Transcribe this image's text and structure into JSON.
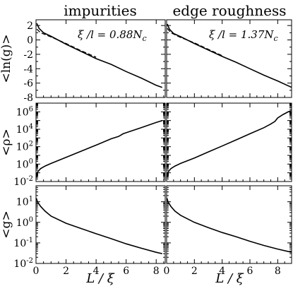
{
  "chart_data": {
    "type": "line",
    "columns": [
      {
        "title": "impurities",
        "annotation_prefix": "ξ /l = ",
        "annotation_value": "0.88N",
        "annotation_sub": "c",
        "xlim": [
          0,
          8.6
        ]
      },
      {
        "title": "edge roughness",
        "annotation_prefix": "ξ /l = ",
        "annotation_value": "1.37N",
        "annotation_sub": "c",
        "xlim": [
          0,
          9
        ]
      }
    ],
    "xlabel": "L / ξ",
    "xticks": [
      0,
      2,
      4,
      6,
      8
    ],
    "rows": [
      {
        "ylabel": "<ln(g)>",
        "scale": "linear",
        "ylim": [
          -8,
          2.8
        ],
        "yticks": [
          2,
          0,
          -2,
          -4,
          -6,
          -8
        ]
      },
      {
        "ylabel": "<ρ>",
        "scale": "log",
        "ylim": [
          0.01,
          10000000
        ],
        "yticks": [
          {
            "base": "10",
            "exp": "6",
            "value": 1000000
          },
          {
            "base": "10",
            "exp": "4",
            "value": 10000
          },
          {
            "base": "10",
            "exp": "2",
            "value": 100
          },
          {
            "base": "10",
            "exp": "0",
            "value": 1
          },
          {
            "base": "10",
            "exp": "-2",
            "value": 0.01
          }
        ]
      },
      {
        "ylabel": "<g>",
        "scale": "log",
        "ylim": [
          0.01,
          60
        ],
        "yticks": [
          {
            "base": "10",
            "exp": "1",
            "value": 10
          },
          {
            "base": "10",
            "exp": "0",
            "value": 1
          },
          {
            "base": "10",
            "exp": "-1",
            "value": 0.1
          },
          {
            "base": "10",
            "exp": "-2",
            "value": 0.01
          }
        ]
      }
    ],
    "panels": [
      {
        "row": 0,
        "col": 0,
        "series": [
          {
            "style": "solid",
            "x": [
              0.05,
              0.2,
              0.5,
              1,
              2,
              3,
              4,
              5,
              6,
              7,
              8,
              8.4
            ],
            "y": [
              2.3,
              1.6,
              1.0,
              0.5,
              -0.6,
              -1.6,
              -2.6,
              -3.4,
              -4.4,
              -5.3,
              -6.3,
              -6.6
            ]
          },
          {
            "style": "dashed",
            "x": [
              0.05,
              0.3,
              1,
              2,
              3,
              4
            ],
            "y": [
              1.5,
              1.0,
              0.4,
              -0.5,
              -1.5,
              -2.4
            ]
          }
        ]
      },
      {
        "row": 0,
        "col": 1,
        "series": [
          {
            "style": "solid",
            "x": [
              0.05,
              0.2,
              0.5,
              1,
              2,
              3,
              4,
              5,
              6,
              7,
              8,
              9
            ],
            "y": [
              2.2,
              1.5,
              0.9,
              0.45,
              -0.5,
              -1.4,
              -2.3,
              -3.1,
              -4.0,
              -4.9,
              -5.7,
              -6.6
            ]
          },
          {
            "style": "dashed",
            "x": [
              0.05,
              0.3,
              1,
              2,
              3,
              4
            ],
            "y": [
              1.6,
              1.0,
              0.35,
              -0.4,
              -1.3,
              -2.2
            ]
          }
        ]
      },
      {
        "row": 1,
        "col": 0,
        "series": [
          {
            "style": "solid",
            "x": [
              0.02,
              0.1,
              0.3,
              0.6,
              1,
              2,
              3,
              4,
              5,
              5.5,
              5.8,
              6,
              7,
              8,
              8.4
            ],
            "y": [
              0.03,
              0.12,
              0.3,
              0.6,
              1.2,
              6,
              30,
              150,
              800,
              1500,
              3000,
              4000,
              15000,
              60000,
              100000
            ]
          }
        ]
      },
      {
        "row": 1,
        "col": 1,
        "series": [
          {
            "style": "solid",
            "x": [
              0.02,
              0.1,
              0.3,
              0.6,
              1,
              2,
              3,
              4,
              5,
              6,
              7,
              7.5,
              7.8,
              8,
              8.4,
              8.7,
              9
            ],
            "y": [
              0.03,
              0.12,
              0.3,
              0.6,
              1.2,
              5,
              25,
              120,
              600,
              3000,
              15000,
              40000,
              80000,
              200000,
              500000,
              900000,
              1500000
            ]
          }
        ]
      },
      {
        "row": 2,
        "col": 0,
        "series": [
          {
            "style": "solid",
            "x": [
              0.02,
              0.1,
              0.3,
              0.6,
              1,
              2,
              3,
              4,
              5,
              6,
              7,
              8,
              8.4
            ],
            "y": [
              15,
              10,
              6,
              3.5,
              2,
              0.9,
              0.5,
              0.28,
              0.16,
              0.09,
              0.055,
              0.035,
              0.03
            ]
          }
        ]
      },
      {
        "row": 2,
        "col": 1,
        "series": [
          {
            "style": "solid",
            "x": [
              0.02,
              0.1,
              0.3,
              0.6,
              1,
              2,
              3,
              4,
              5,
              6,
              7,
              8,
              9
            ],
            "y": [
              15,
              10,
              6,
              3.5,
              2.2,
              1.0,
              0.55,
              0.32,
              0.2,
              0.12,
              0.075,
              0.05,
              0.035
            ]
          }
        ]
      }
    ]
  }
}
